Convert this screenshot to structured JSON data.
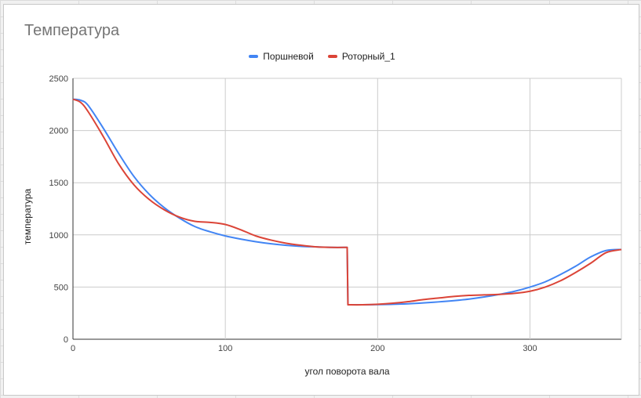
{
  "chart_data": {
    "type": "line",
    "title": "Температура",
    "xlabel": "угол поворота вала",
    "ylabel": "температура",
    "xlim": [
      0,
      360
    ],
    "ylim": [
      0,
      2500
    ],
    "x_ticks": [
      0,
      100,
      200,
      300
    ],
    "y_ticks": [
      0,
      500,
      1000,
      1500,
      2000,
      2500
    ],
    "grid": true,
    "legend_position": "top-center",
    "series": [
      {
        "name": "Поршневой",
        "color": "#4285f4",
        "x": [
          0,
          5,
          10,
          20,
          30,
          40,
          50,
          60,
          70,
          80,
          90,
          100,
          110,
          120,
          130,
          140,
          150,
          160,
          170,
          180,
          180.5,
          190,
          200,
          210,
          220,
          230,
          240,
          250,
          260,
          270,
          280,
          290,
          300,
          310,
          320,
          330,
          340,
          350,
          360
        ],
        "y": [
          2300,
          2290,
          2240,
          2020,
          1780,
          1560,
          1390,
          1260,
          1160,
          1080,
          1030,
          990,
          960,
          935,
          915,
          900,
          890,
          885,
          880,
          880,
          330,
          330,
          332,
          335,
          340,
          348,
          358,
          370,
          385,
          405,
          430,
          460,
          500,
          550,
          620,
          700,
          790,
          850,
          860
        ]
      },
      {
        "name": "Роторный_1",
        "color": "#db4437",
        "x": [
          0,
          5,
          10,
          20,
          30,
          40,
          50,
          60,
          70,
          80,
          90,
          100,
          110,
          120,
          130,
          140,
          150,
          160,
          170,
          180,
          180.5,
          190,
          200,
          210,
          220,
          230,
          240,
          250,
          260,
          270,
          280,
          290,
          300,
          310,
          320,
          330,
          340,
          350,
          360
        ],
        "y": [
          2300,
          2270,
          2180,
          1940,
          1680,
          1480,
          1340,
          1240,
          1170,
          1130,
          1120,
          1100,
          1050,
          990,
          950,
          920,
          900,
          885,
          880,
          880,
          330,
          330,
          335,
          345,
          360,
          380,
          395,
          410,
          420,
          425,
          430,
          440,
          460,
          500,
          560,
          640,
          730,
          830,
          860
        ]
      }
    ]
  }
}
